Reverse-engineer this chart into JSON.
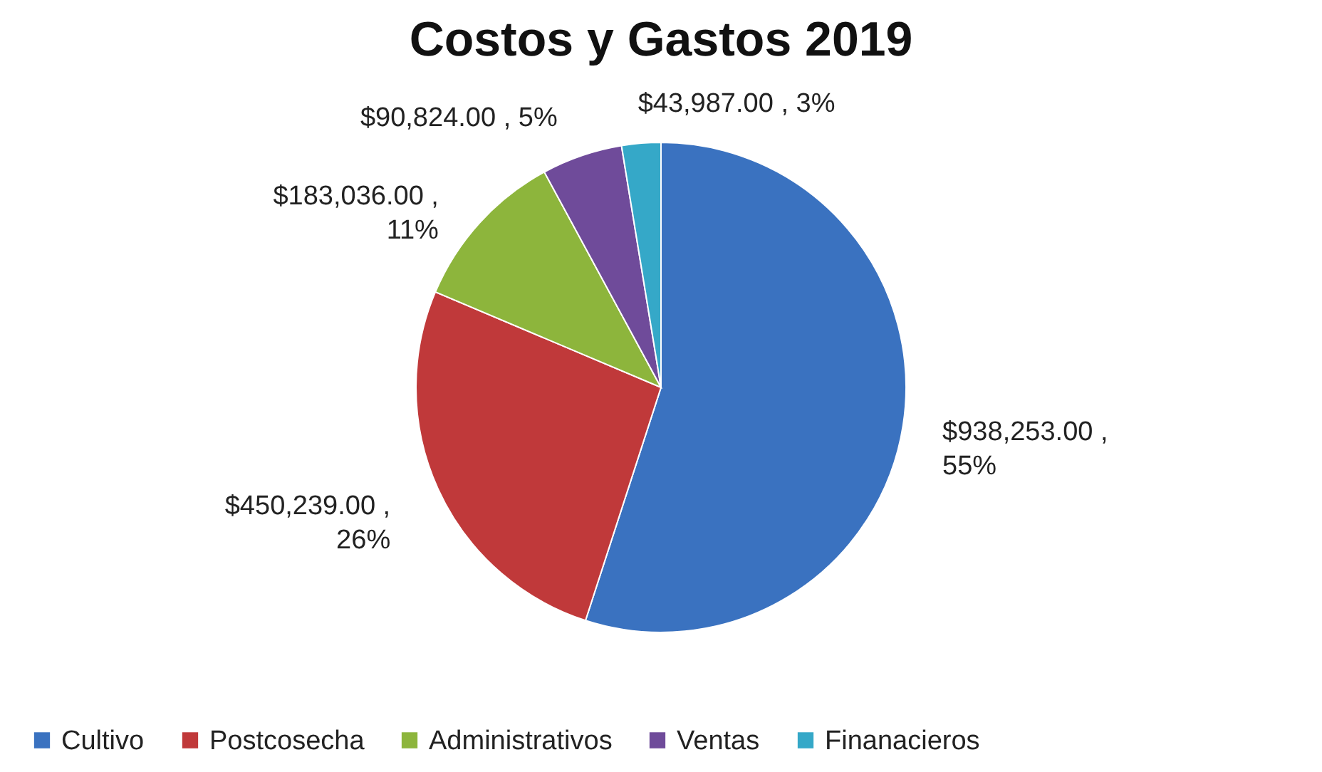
{
  "chart_data": {
    "type": "pie",
    "title": "Costos y Gastos 2019",
    "categories": [
      "Cultivo",
      "Postcosecha",
      "Administrativos",
      "Ventas",
      "Finanacieros"
    ],
    "values": [
      938253,
      450239,
      183036,
      90824,
      43987
    ],
    "colors": [
      "#3a72c0",
      "#c0393a",
      "#8db53c",
      "#6f4b9a",
      "#35a8c8"
    ],
    "value_labels": [
      "$938,253.00 , 55%",
      "$450,239.00 , 26%",
      "$183,036.00 , 11%",
      "$90,824.00 , 5%",
      "$43,987.00 , 3%"
    ],
    "legend": "bottom"
  }
}
